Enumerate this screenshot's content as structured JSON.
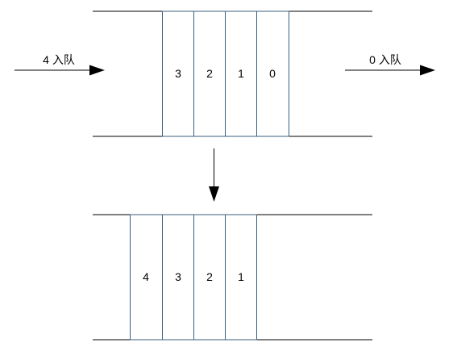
{
  "colors": {
    "line": "#000000",
    "cell_border": "#3b5f7e",
    "text": "#000000",
    "background": "#ffffff"
  },
  "before": {
    "left_label": "4 入队",
    "right_label": "0 入队",
    "cells": [
      "3",
      "2",
      "1",
      "0"
    ]
  },
  "after": {
    "cells": [
      "4",
      "3",
      "2",
      "1"
    ]
  },
  "icons": {
    "enqueue_arrow": "arrow-right-icon",
    "transition_arrow": "arrow-down-icon"
  }
}
